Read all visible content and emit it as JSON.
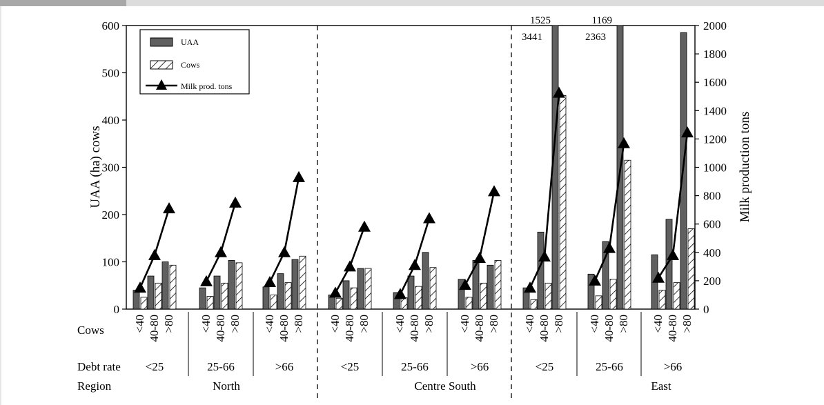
{
  "chart_data": {
    "type": "bar",
    "title": "",
    "ylabel": "UAA (ha) cows",
    "y2label": "Milk production tons",
    "ylim": [
      0,
      600
    ],
    "y2lim": [
      0,
      2000
    ],
    "yticks": [
      "0",
      "100",
      "200",
      "300",
      "400",
      "500",
      "600"
    ],
    "y2ticks": [
      "0",
      "200",
      "400",
      "600",
      "800",
      "1000",
      "1200",
      "1400",
      "1600",
      "1800",
      "2000"
    ],
    "legend": {
      "position": "top-left",
      "items": [
        {
          "label": "UAA",
          "style": "solid-bar",
          "color": "#606060"
        },
        {
          "label": "Cows",
          "style": "hatched-bar",
          "color": "#ffffff"
        },
        {
          "label": "Milk prod. tons",
          "style": "line-triangle",
          "color": "#000000"
        }
      ]
    },
    "row_labels": {
      "cows": "Cows",
      "debt": "Debt rate",
      "region": "Region"
    },
    "cow_classes": [
      "<40",
      "40-80",
      ">80"
    ],
    "regions": [
      "North",
      "Centre South",
      "East"
    ],
    "debt_rates": [
      "<25",
      "25-66",
      ">66"
    ],
    "groups": [
      {
        "region": "North",
        "debt": "<25",
        "uaa": [
          40,
          70,
          100
        ],
        "cows": [
          25,
          55,
          93
        ],
        "milk": [
          150,
          380,
          710
        ]
      },
      {
        "region": "North",
        "debt": "25-66",
        "uaa": [
          45,
          70,
          103
        ],
        "cows": [
          27,
          55,
          98
        ],
        "milk": [
          195,
          400,
          750
        ]
      },
      {
        "region": "North",
        "debt": ">66",
        "uaa": [
          47,
          75,
          105
        ],
        "cows": [
          30,
          56,
          112
        ],
        "milk": [
          190,
          400,
          930
        ]
      },
      {
        "region": "Centre South",
        "debt": "<25",
        "uaa": [
          30,
          60,
          86
        ],
        "cows": [
          23,
          45,
          86
        ],
        "milk": [
          115,
          300,
          580
        ]
      },
      {
        "region": "Centre South",
        "debt": "25-66",
        "uaa": [
          35,
          70,
          120
        ],
        "cows": [
          24,
          48,
          88
        ],
        "milk": [
          105,
          310,
          640
        ]
      },
      {
        "region": "Centre South",
        "debt": ">66",
        "uaa": [
          63,
          103,
          93
        ],
        "cows": [
          25,
          55,
          103
        ],
        "milk": [
          170,
          360,
          830
        ]
      },
      {
        "region": "East",
        "debt": "<25",
        "uaa": [
          45,
          163,
          3441
        ],
        "cows": [
          20,
          55,
          452
        ],
        "milk": [
          150,
          370,
          1525
        ]
      },
      {
        "region": "East",
        "debt": "25-66",
        "uaa": [
          74,
          143,
          2363
        ],
        "cows": [
          28,
          63,
          315
        ],
        "milk": [
          200,
          430,
          1169
        ]
      },
      {
        "region": "East",
        "debt": ">66",
        "uaa": [
          115,
          190,
          585
        ],
        "cows": [
          40,
          56,
          170
        ],
        "milk": [
          220,
          380,
          1245
        ]
      }
    ],
    "annotations": [
      {
        "text": "1525",
        "label": "milk value above axis, East <25 >80"
      },
      {
        "text": "3441",
        "label": "UAA value above axis, East <25 >80"
      },
      {
        "text": "1169",
        "label": "milk value above axis, East 25-66 >80"
      },
      {
        "text": "2363",
        "label": "UAA value above axis, East 25-66 >80"
      }
    ]
  }
}
